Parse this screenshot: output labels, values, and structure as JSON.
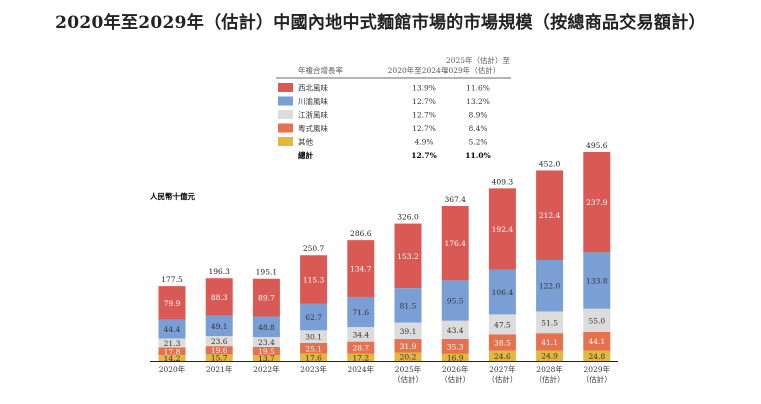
{
  "chart_data": {
    "type": "bar",
    "stacked": true,
    "title": "2020年至2029年（估計）中國內地中式麵館市場的市場規模（按總商品交易額計）",
    "ylabel": "人民幣十億元",
    "categories": [
      [
        "2020年"
      ],
      [
        "2021年"
      ],
      [
        "2022年"
      ],
      [
        "2023年"
      ],
      [
        "2024年"
      ],
      [
        "2025年",
        "（估計）"
      ],
      [
        "2026年",
        "（估計）"
      ],
      [
        "2027年",
        "（估計）"
      ],
      [
        "2028年",
        "（估計）"
      ],
      [
        "2029年",
        "（估計）"
      ]
    ],
    "totals": [
      "177.5",
      "196.3",
      "195.1",
      "250.7",
      "286.6",
      "326.0",
      "367.4",
      "409.3",
      "452.0",
      "495.6"
    ],
    "series": [
      {
        "name": "其他",
        "color": "#e3b83f",
        "label_color": "#333333",
        "values": [
          14.2,
          15.7,
          13.7,
          17.6,
          17.2,
          20.2,
          16.9,
          24.6,
          24.9,
          24.8
        ]
      },
      {
        "name": "粵式風味",
        "color": "#e5714e",
        "label_color": "#ffffff",
        "values": [
          17.8,
          19.6,
          19.5,
          25.1,
          28.7,
          31.9,
          35.3,
          38.5,
          41.1,
          44.1
        ]
      },
      {
        "name": "江浙風味",
        "color": "#dcdcdc",
        "label_color": "#333333",
        "values": [
          21.3,
          23.6,
          23.4,
          30.1,
          34.4,
          39.1,
          43.4,
          47.5,
          51.5,
          55.0
        ]
      },
      {
        "name": "川渝風味",
        "color": "#7a9fd5",
        "label_color": "#333333",
        "values": [
          44.4,
          49.1,
          48.8,
          62.7,
          71.6,
          81.5,
          95.5,
          106.4,
          122.0,
          133.8
        ]
      },
      {
        "name": "西北風味",
        "color": "#d95a55",
        "label_color": "#ffffff",
        "values": [
          79.9,
          88.3,
          89.7,
          115.3,
          134.7,
          153.2,
          176.4,
          192.4,
          212.4,
          237.9
        ]
      }
    ],
    "ylim": [
      0,
      500
    ],
    "grid": false,
    "legend": {
      "placement": "top-center",
      "header": {
        "label": "年複合增長率",
        "col1": "2020年至2024年",
        "col2_line1": "2025年（估計）至",
        "col2_line2": "2029年（估計）"
      },
      "rows": [
        {
          "name": "西北風味",
          "color": "#d95a55",
          "cagr1": "13.9%",
          "cagr2": "11.6%"
        },
        {
          "name": "川渝風味",
          "color": "#7a9fd5",
          "cagr1": "12.7%",
          "cagr2": "13.2%"
        },
        {
          "name": "江浙風味",
          "color": "#dcdcdc",
          "cagr1": "12.7%",
          "cagr2": "8.9%"
        },
        {
          "name": "粵式風味",
          "color": "#e5714e",
          "cagr1": "12.7%",
          "cagr2": "8.4%"
        },
        {
          "name": "其他",
          "color": "#e3b83f",
          "cagr1": "4.9%",
          "cagr2": "5.2%"
        }
      ],
      "total": {
        "name": "總計",
        "cagr1": "12.7%",
        "cagr2": "11.0%"
      }
    }
  }
}
